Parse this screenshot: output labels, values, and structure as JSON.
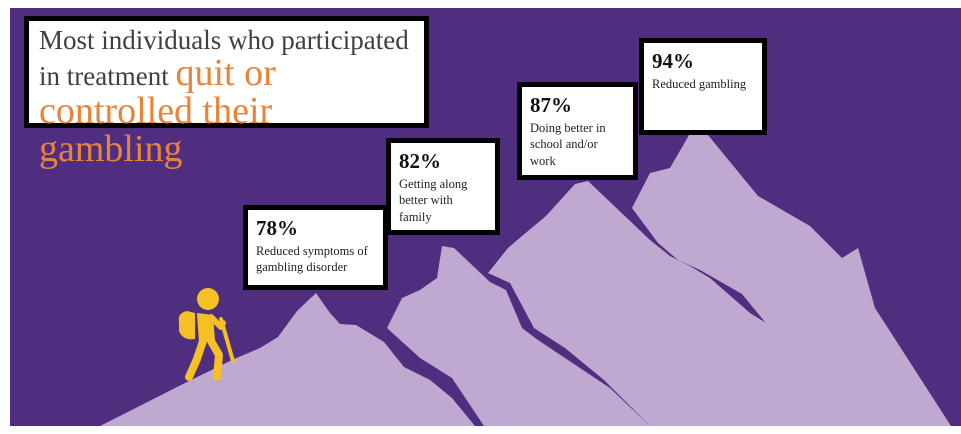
{
  "headline": {
    "lead": "Most individuals who participated in treatment ",
    "accent": "quit or controlled their gambling"
  },
  "stats": [
    {
      "percent": "78%",
      "label": "Reduced symptoms of gambling disorder"
    },
    {
      "percent": "82%",
      "label": "Getting along better with family"
    },
    {
      "percent": "87%",
      "label": "Doing better in school and/or work"
    },
    {
      "percent": "94%",
      "label": "Reduced gambling"
    }
  ],
  "colors": {
    "background": "#4f2d7f",
    "mountain": "#c0a9d0",
    "accent_text": "#e8833a",
    "hiker": "#f5c023"
  },
  "icons": {
    "hiker": "hiker-icon"
  }
}
